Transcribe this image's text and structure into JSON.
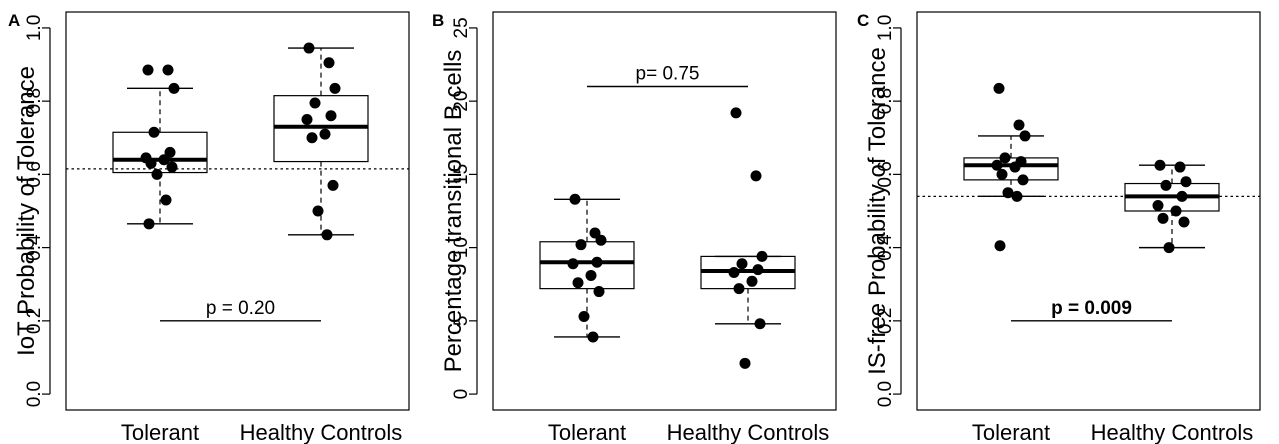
{
  "chart_data": [
    {
      "type": "box",
      "panel": "A",
      "ylabel": "IoT Probability of Tolerance",
      "ylim": [
        0,
        1
      ],
      "yticks": [
        "0.0",
        "0.2",
        "0.4",
        "0.6",
        "0.8",
        "1.0"
      ],
      "categories": [
        "Tolerant",
        "Healthy Controls"
      ],
      "reference_line": 0.615,
      "boxes": [
        {
          "whisker_low": 0.465,
          "q1": 0.605,
          "median": 0.64,
          "q3": 0.715,
          "whisker_high": 0.835,
          "points": [
            0.885,
            0.885,
            0.835,
            0.715,
            0.66,
            0.645,
            0.64,
            0.63,
            0.62,
            0.6,
            0.53,
            0.465
          ]
        },
        {
          "whisker_low": 0.435,
          "q1": 0.635,
          "median": 0.73,
          "q3": 0.815,
          "whisker_high": 0.945,
          "points": [
            0.945,
            0.905,
            0.835,
            0.795,
            0.76,
            0.75,
            0.71,
            0.7,
            0.57,
            0.5,
            0.435
          ]
        }
      ],
      "comparison": {
        "text": "p = 0.20",
        "y": 0.2,
        "bold": false
      }
    },
    {
      "type": "box",
      "panel": "B",
      "ylabel": "Percentage transitional B cells",
      "ylim": [
        0,
        25
      ],
      "yticks": [
        "0",
        "5",
        "10",
        "15",
        "20",
        "25"
      ],
      "categories": [
        "Tolerant",
        "Healthy Controls"
      ],
      "reference_line": null,
      "boxes": [
        {
          "whisker_low": 3.9,
          "q1": 7.2,
          "median": 9.0,
          "q3": 10.4,
          "whisker_high": 13.3,
          "points": [
            13.3,
            11.0,
            10.5,
            10.2,
            9.0,
            8.9,
            8.1,
            7.6,
            7.0,
            5.3,
            3.9
          ]
        },
        {
          "whisker_low": 4.8,
          "q1": 7.2,
          "median": 8.4,
          "q3": 9.4,
          "whisker_high": 9.4,
          "points": [
            19.2,
            14.9,
            9.4,
            8.9,
            8.5,
            8.3,
            7.7,
            7.2,
            4.8,
            2.1
          ]
        }
      ],
      "comparison": {
        "text": "p= 0.75",
        "y": 21.0,
        "bold": false
      }
    },
    {
      "type": "box",
      "panel": "C",
      "ylabel": "IS-free Probability of Tolerance",
      "ylim": [
        0,
        1
      ],
      "yticks": [
        "0.0",
        "0.2",
        "0.4",
        "0.6",
        "0.8",
        "1.0"
      ],
      "categories": [
        "Tolerant",
        "Healthy Controls"
      ],
      "reference_line": 0.54,
      "boxes": [
        {
          "whisker_low": 0.54,
          "q1": 0.585,
          "median": 0.625,
          "q3": 0.645,
          "whisker_high": 0.705,
          "points": [
            0.835,
            0.735,
            0.705,
            0.645,
            0.635,
            0.625,
            0.62,
            0.6,
            0.585,
            0.55,
            0.54,
            0.405
          ]
        },
        {
          "whisker_low": 0.4,
          "q1": 0.5,
          "median": 0.54,
          "q3": 0.575,
          "whisker_high": 0.625,
          "points": [
            0.625,
            0.62,
            0.58,
            0.57,
            0.54,
            0.515,
            0.5,
            0.48,
            0.47,
            0.4
          ]
        }
      ],
      "comparison": {
        "text": "p = 0.009",
        "y": 0.2,
        "bold": true
      }
    }
  ]
}
